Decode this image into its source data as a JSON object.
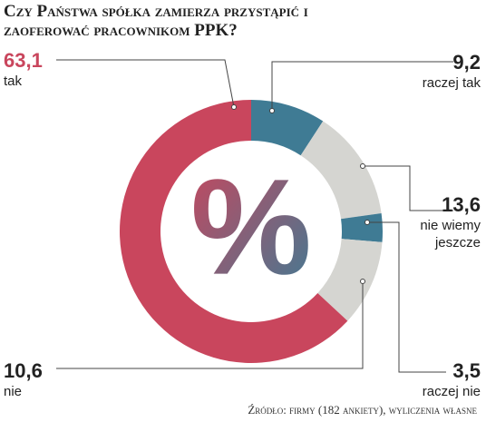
{
  "chart_data": {
    "type": "donut",
    "title": "Czy Państwa spółka zamierza przystąpić i zaoferować pracownikom PPK?",
    "categories": [
      "raczej tak",
      "nie wiemy jeszcze",
      "raczej nie",
      "nie",
      "tak"
    ],
    "values": [
      9.2,
      13.6,
      3.5,
      10.6,
      63.1
    ],
    "value_labels": [
      "9,2",
      "13,6",
      "3,5",
      "10,6",
      "63,1"
    ],
    "colors": [
      "#3f7b94",
      "#d5d5d1",
      "#3f7b94",
      "#d5d5d1",
      "#c9465d"
    ],
    "center_label": "%",
    "source": "Źródło: firmy (182 ankiety), wyliczenia własne"
  }
}
